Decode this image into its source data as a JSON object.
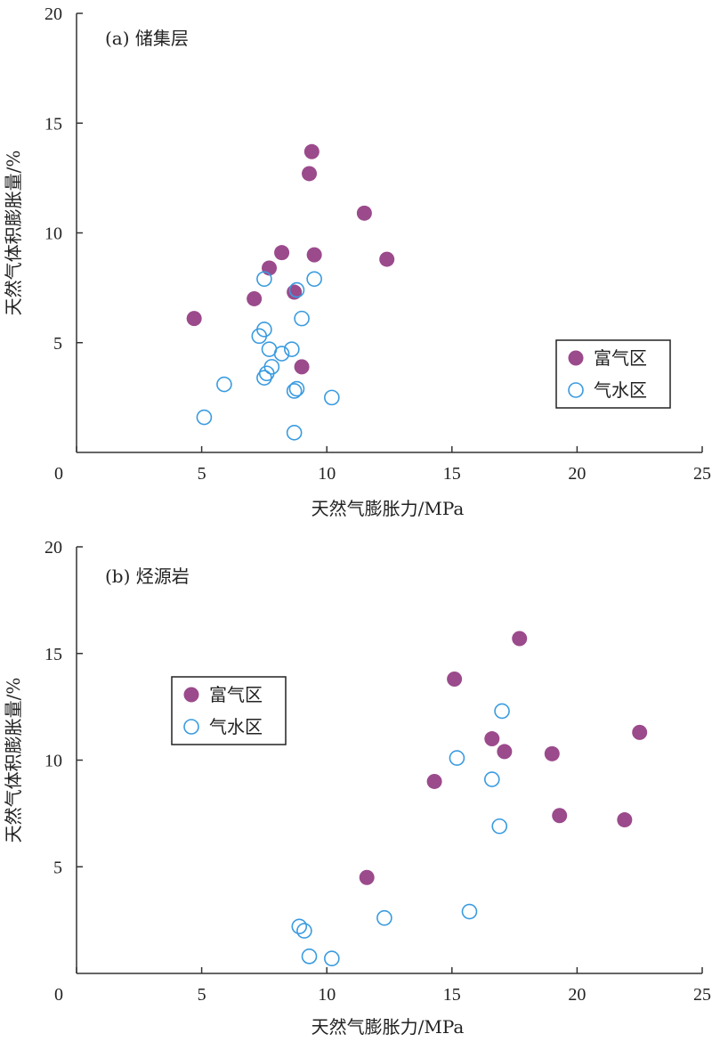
{
  "chart_data": [
    {
      "type": "scatter",
      "title": "(a) 储集层",
      "xlabel": "天然气膨胀力/MPa",
      "ylabel": "天然气体积膨胀量/%",
      "xlim": [
        0,
        25
      ],
      "ylim": [
        0,
        20
      ],
      "xticks": [
        "0",
        "5",
        "10",
        "15",
        "20",
        "25"
      ],
      "yticks": [
        "5",
        "10",
        "15",
        "20"
      ],
      "legend_position": "right",
      "series": [
        {
          "name": "富气区",
          "marker": "filled-circle",
          "color": "#9b4a8c",
          "points": [
            [
              4.7,
              6.1
            ],
            [
              7.1,
              7.0
            ],
            [
              7.7,
              8.4
            ],
            [
              8.2,
              9.1
            ],
            [
              8.7,
              7.3
            ],
            [
              9.0,
              3.9
            ],
            [
              9.3,
              12.7
            ],
            [
              9.4,
              13.7
            ],
            [
              9.5,
              9.0
            ],
            [
              11.5,
              10.9
            ],
            [
              12.4,
              8.8
            ]
          ]
        },
        {
          "name": "气水区",
          "marker": "open-circle",
          "color": "#3a9be0",
          "points": [
            [
              5.1,
              1.6
            ],
            [
              5.9,
              3.1
            ],
            [
              7.3,
              5.3
            ],
            [
              7.5,
              7.9
            ],
            [
              7.5,
              3.4
            ],
            [
              7.5,
              5.6
            ],
            [
              7.6,
              3.6
            ],
            [
              7.7,
              4.7
            ],
            [
              7.8,
              3.9
            ],
            [
              8.2,
              4.5
            ],
            [
              8.6,
              4.7
            ],
            [
              8.7,
              2.8
            ],
            [
              8.7,
              0.9
            ],
            [
              8.8,
              2.9
            ],
            [
              8.8,
              7.4
            ],
            [
              9.0,
              6.1
            ],
            [
              9.5,
              7.9
            ],
            [
              10.2,
              2.5
            ]
          ]
        }
      ]
    },
    {
      "type": "scatter",
      "title": "(b) 烃源岩",
      "xlabel": "天然气膨胀力/MPa",
      "ylabel": "天然气体积膨胀量/%",
      "xlim": [
        0,
        25
      ],
      "ylim": [
        0,
        20
      ],
      "xticks": [
        "0",
        "5",
        "10",
        "15",
        "20",
        "25"
      ],
      "yticks": [
        "5",
        "10",
        "15",
        "20"
      ],
      "legend_position": "left",
      "series": [
        {
          "name": "富气区",
          "marker": "filled-circle",
          "color": "#9b4a8c",
          "points": [
            [
              11.6,
              4.5
            ],
            [
              14.3,
              9.0
            ],
            [
              15.1,
              13.8
            ],
            [
              16.6,
              11.0
            ],
            [
              17.1,
              10.4
            ],
            [
              17.7,
              15.7
            ],
            [
              19.0,
              10.3
            ],
            [
              19.3,
              7.4
            ],
            [
              21.9,
              7.2
            ],
            [
              22.5,
              11.3
            ]
          ]
        },
        {
          "name": "气水区",
          "marker": "open-circle",
          "color": "#3a9be0",
          "points": [
            [
              8.9,
              2.2
            ],
            [
              9.1,
              2.0
            ],
            [
              9.3,
              0.8
            ],
            [
              10.2,
              0.7
            ],
            [
              12.3,
              2.6
            ],
            [
              15.2,
              10.1
            ],
            [
              15.7,
              2.9
            ],
            [
              16.6,
              9.1
            ],
            [
              16.9,
              6.9
            ],
            [
              17.0,
              12.3
            ]
          ]
        }
      ]
    }
  ]
}
